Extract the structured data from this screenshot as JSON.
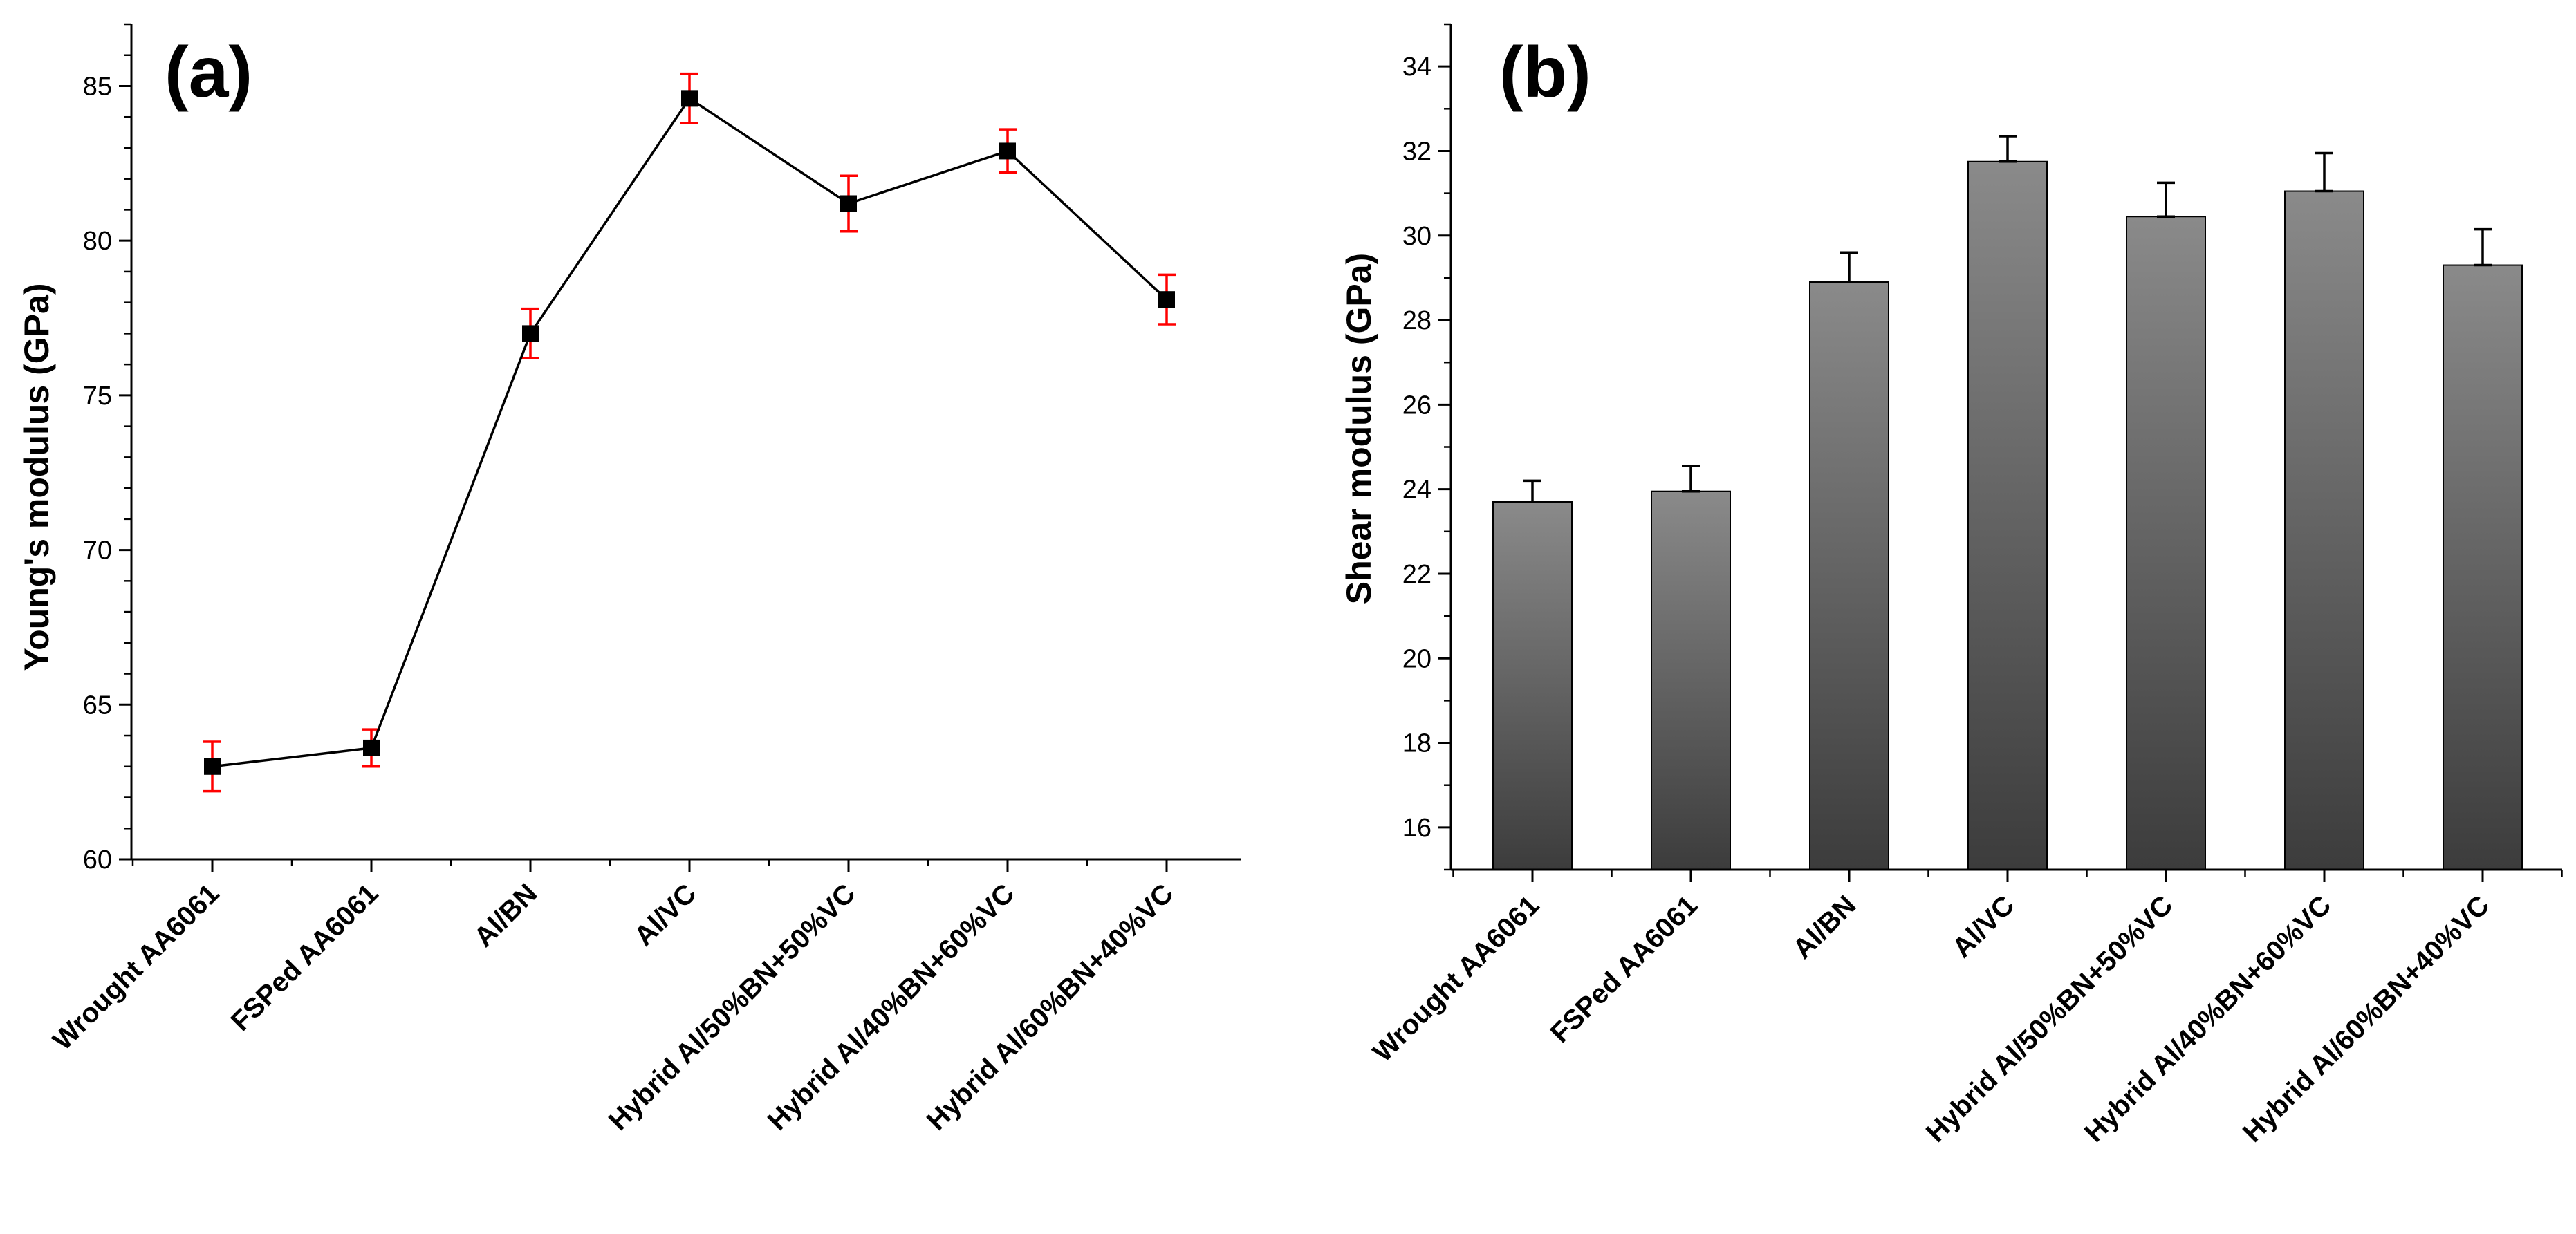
{
  "chart_data": [
    {
      "panel": "(a)",
      "type": "line",
      "ylabel": "Young's modulus (GPa)",
      "categories": [
        "Wrought AA6061",
        "FSPed AA6061",
        "Al/BN",
        "Al/VC",
        "Hybrid Al/50%BN+50%VC",
        "Hybrid Al/40%BN+60%VC",
        "Hybrid Al/60%BN+40%VC"
      ],
      "values": [
        63.0,
        63.6,
        77.0,
        84.6,
        81.2,
        82.9,
        78.1
      ],
      "errors": [
        0.8,
        0.6,
        0.8,
        0.8,
        0.9,
        0.7,
        0.8
      ],
      "ylim": [
        60,
        87
      ],
      "yticks": [
        60,
        65,
        70,
        75,
        80,
        85
      ],
      "colors": {
        "line": "#000000",
        "marker": "#000000",
        "error": "#ff0000"
      }
    },
    {
      "panel": "(b)",
      "type": "bar",
      "ylabel": "Shear modulus (GPa)",
      "categories": [
        "Wrought AA6061",
        "FSPed AA6061",
        "Al/BN",
        "Al/VC",
        "Hybrid Al/50%BN+50%VC",
        "Hybrid Al/40%BN+60%VC",
        "Hybrid Al/60%BN+40%VC"
      ],
      "values": [
        23.7,
        23.95,
        28.9,
        31.75,
        30.45,
        31.05,
        29.3
      ],
      "errors": [
        0.5,
        0.6,
        0.7,
        0.6,
        0.8,
        0.9,
        0.85
      ],
      "ylim": [
        15,
        35
      ],
      "yticks": [
        16,
        18,
        20,
        22,
        24,
        26,
        28,
        30,
        32,
        34
      ],
      "colors": {
        "bar_top": "#8a8a8a",
        "bar_bottom": "#3c3c3c",
        "error": "#000000"
      }
    }
  ]
}
